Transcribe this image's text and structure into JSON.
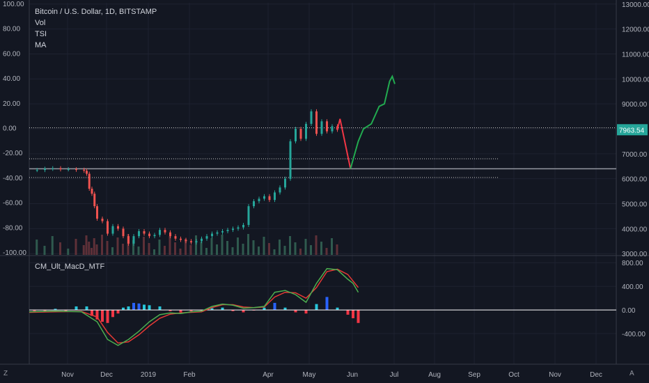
{
  "header": {
    "title": "Bitcoin / U.S. Dollar, 1D, BITSTAMP",
    "indicators": [
      "Vol",
      "TSI",
      "MA"
    ],
    "sub_indicator": "CM_Ult_MacD_MTF",
    "left_corner": "Z",
    "right_corner": "A"
  },
  "chart_data": [
    {
      "type": "line",
      "title": "Bitcoin / U.S. Dollar, 1D, BITSTAMP",
      "price_axis": {
        "ticks": [
          3000,
          4000,
          5000,
          6000,
          7000,
          8000,
          9000,
          10000,
          11000,
          12000,
          13000
        ],
        "labels": [
          "3000.00",
          "4000.00",
          "5000.00",
          "6000.00",
          "7000.00",
          "8000.00",
          "9000.00",
          "10000.00",
          "11000.00",
          "12000.00",
          "13000.00"
        ],
        "range": [
          2950,
          13050
        ]
      },
      "tsi_axis": {
        "ticks": [
          -100,
          -80,
          -60,
          -40,
          -20,
          0,
          20,
          40,
          60,
          80,
          100
        ],
        "labels": [
          "-100.00",
          "-80.00",
          "-60.00",
          "-40.00",
          "-20.00",
          "0.00",
          "20.00",
          "40.00",
          "60.00",
          "80.00",
          "100.00"
        ],
        "range": [
          -100,
          100
        ]
      },
      "last_price": {
        "value": 7963.54,
        "label": "7963.54"
      },
      "x_labels": [
        "Nov",
        "Dec",
        "2019",
        "Feb",
        "Apr",
        "May",
        "Jun",
        "Jul",
        "Aug",
        "Sep",
        "Oct",
        "Nov",
        "Dec"
      ],
      "price_path": [
        [
          0,
          6350
        ],
        [
          3,
          6350
        ],
        [
          6,
          6400
        ],
        [
          9,
          6420
        ],
        [
          12,
          6380
        ],
        [
          15,
          6380
        ],
        [
          18,
          6360
        ],
        [
          21,
          6320
        ],
        [
          22,
          6200
        ],
        [
          23,
          5600
        ],
        [
          24,
          5400
        ],
        [
          25,
          4900
        ],
        [
          26,
          4400
        ],
        [
          28,
          4300
        ],
        [
          30,
          3800
        ],
        [
          32,
          4100
        ],
        [
          34,
          4000
        ],
        [
          36,
          3700
        ],
        [
          38,
          3400
        ],
        [
          40,
          3700
        ],
        [
          42,
          3900
        ],
        [
          44,
          3800
        ],
        [
          46,
          3700
        ],
        [
          48,
          3750
        ],
        [
          50,
          3950
        ],
        [
          52,
          3850
        ],
        [
          54,
          3700
        ],
        [
          56,
          3600
        ],
        [
          58,
          3550
        ],
        [
          60,
          3500
        ],
        [
          62,
          3450
        ],
        [
          64,
          3500
        ],
        [
          66,
          3600
        ],
        [
          68,
          3700
        ],
        [
          70,
          3800
        ],
        [
          72,
          3850
        ],
        [
          74,
          3900
        ],
        [
          76,
          3950
        ],
        [
          78,
          4000
        ],
        [
          80,
          4050
        ],
        [
          82,
          4150
        ],
        [
          84,
          4900
        ],
        [
          86,
          5100
        ],
        [
          88,
          5200
        ],
        [
          90,
          5300
        ],
        [
          92,
          5150
        ],
        [
          94,
          5450
        ],
        [
          96,
          5650
        ],
        [
          98,
          6000
        ],
        [
          100,
          7500
        ],
        [
          102,
          8000
        ],
        [
          104,
          7600
        ],
        [
          106,
          8200
        ],
        [
          108,
          8700
        ],
        [
          110,
          7800
        ],
        [
          112,
          8300
        ],
        [
          114,
          7900
        ],
        [
          116,
          8100
        ],
        [
          118,
          7963
        ]
      ],
      "forecast_red": [
        [
          118,
          7963
        ],
        [
          119,
          8400
        ],
        [
          121,
          7400
        ],
        [
          123,
          6400
        ]
      ],
      "forecast_green": [
        [
          123,
          6400
        ],
        [
          126,
          7500
        ],
        [
          128,
          8000
        ],
        [
          131,
          8200
        ],
        [
          134,
          8900
        ],
        [
          136,
          9000
        ],
        [
          138,
          9900
        ],
        [
          139,
          10100
        ],
        [
          140,
          9800
        ]
      ],
      "levels": [
        {
          "value": 6800,
          "style": "dotted"
        },
        {
          "value": 6400,
          "style": "solid"
        },
        {
          "value": 6050,
          "style": "dotted"
        }
      ],
      "tsi_zero": 0
    },
    {
      "type": "line",
      "title": "CM_Ult_MacD_MTF",
      "axis": {
        "ticks": [
          -400,
          0,
          400,
          800
        ],
        "labels": [
          "-400.00",
          "0.00",
          "400.00",
          "800.00"
        ],
        "range": [
          -800,
          850
        ]
      },
      "macd": [
        [
          0,
          -30
        ],
        [
          10,
          -20
        ],
        [
          20,
          -30
        ],
        [
          26,
          -200
        ],
        [
          30,
          -500
        ],
        [
          34,
          -600
        ],
        [
          38,
          -500
        ],
        [
          42,
          -360
        ],
        [
          46,
          -200
        ],
        [
          50,
          -80
        ],
        [
          54,
          -50
        ],
        [
          58,
          -60
        ],
        [
          62,
          -30
        ],
        [
          66,
          -20
        ],
        [
          70,
          60
        ],
        [
          74,
          100
        ],
        [
          78,
          80
        ],
        [
          82,
          30
        ],
        [
          86,
          40
        ],
        [
          90,
          60
        ],
        [
          94,
          300
        ],
        [
          98,
          330
        ],
        [
          102,
          260
        ],
        [
          106,
          130
        ],
        [
          110,
          450
        ],
        [
          114,
          700
        ],
        [
          118,
          680
        ],
        [
          122,
          520
        ],
        [
          124,
          450
        ],
        [
          126,
          300
        ]
      ],
      "signal": [
        [
          0,
          -40
        ],
        [
          10,
          -30
        ],
        [
          20,
          -25
        ],
        [
          26,
          -120
        ],
        [
          30,
          -380
        ],
        [
          34,
          -560
        ],
        [
          38,
          -540
        ],
        [
          42,
          -420
        ],
        [
          46,
          -270
        ],
        [
          50,
          -140
        ],
        [
          54,
          -70
        ],
        [
          58,
          -50
        ],
        [
          62,
          -40
        ],
        [
          66,
          -30
        ],
        [
          70,
          40
        ],
        [
          74,
          90
        ],
        [
          78,
          90
        ],
        [
          82,
          50
        ],
        [
          86,
          40
        ],
        [
          90,
          50
        ],
        [
          94,
          220
        ],
        [
          98,
          300
        ],
        [
          102,
          290
        ],
        [
          106,
          200
        ],
        [
          110,
          380
        ],
        [
          114,
          650
        ],
        [
          118,
          690
        ],
        [
          122,
          600
        ],
        [
          126,
          380
        ]
      ],
      "histogram": [
        [
          2,
          -20
        ],
        [
          6,
          -30
        ],
        [
          10,
          20
        ],
        [
          14,
          -30
        ],
        [
          18,
          60
        ],
        [
          22,
          60
        ],
        [
          24,
          -100
        ],
        [
          26,
          -160
        ],
        [
          28,
          -200
        ],
        [
          30,
          -220
        ],
        [
          32,
          -120
        ],
        [
          34,
          -60
        ],
        [
          36,
          40
        ],
        [
          38,
          60
        ],
        [
          40,
          120
        ],
        [
          42,
          110
        ],
        [
          44,
          90
        ],
        [
          46,
          80
        ],
        [
          50,
          60
        ],
        [
          54,
          -20
        ],
        [
          58,
          -40
        ],
        [
          62,
          -20
        ],
        [
          66,
          -10
        ],
        [
          70,
          30
        ],
        [
          74,
          40
        ],
        [
          78,
          -20
        ],
        [
          82,
          -40
        ],
        [
          86,
          -10
        ],
        [
          90,
          40
        ],
        [
          94,
          120
        ],
        [
          98,
          40
        ],
        [
          102,
          -40
        ],
        [
          106,
          -60
        ],
        [
          110,
          100
        ],
        [
          114,
          220
        ],
        [
          118,
          40
        ],
        [
          122,
          -80
        ],
        [
          124,
          -140
        ],
        [
          126,
          -220
        ]
      ]
    }
  ]
}
